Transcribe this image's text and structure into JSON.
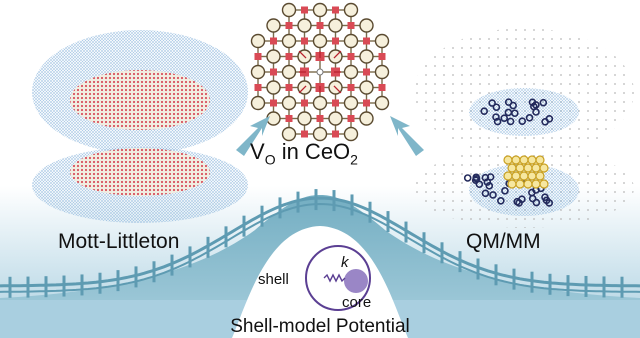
{
  "labels": {
    "mott_littleton": "Mott-Littleton",
    "qm_mm": "QM/MM",
    "title_prefix": "V",
    "title_sub": "O",
    "title_mid": " in CeO",
    "title_sub2": "2",
    "bottom": "Shell-model Potential",
    "shell": "shell",
    "core": "core",
    "spring_constant": "k"
  },
  "colors": {
    "background_top": "#ffffff",
    "bottom_band": "#a9cfe0",
    "hill_fill": "#7fb5c8",
    "fence": "#5e9bb2",
    "arrow": "#7fb6c9",
    "cerium": "#f6f0dc",
    "oxygen": "#d94a55",
    "vacancy_arrow": "#b8232f",
    "cloud_blue": "#aac8e4",
    "qm_dark": "#232a5c",
    "qm_gold": "#e8c23a",
    "core_purple": "#9a86c6",
    "shell_ring": "#5b3f93"
  },
  "icons": [
    "up-right-arrow-icon",
    "up-left-arrow-icon",
    "core-shell-spring-icon"
  ]
}
